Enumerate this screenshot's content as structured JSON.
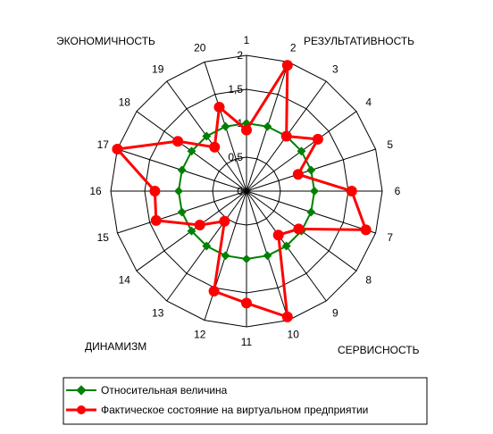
{
  "chart_data": {
    "type": "radar",
    "categories": [
      "1",
      "2",
      "3",
      "4",
      "5",
      "6",
      "7",
      "8",
      "9",
      "10",
      "11",
      "12",
      "13",
      "14",
      "15",
      "16",
      "17",
      "18",
      "19",
      "20"
    ],
    "rlim": [
      0,
      2
    ],
    "r_ticks": [
      "0",
      "0,5",
      "1",
      "1,5",
      "2"
    ],
    "grid": true,
    "legend_position": "bottom",
    "corner_labels": {
      "top_left": "ЭКОНОМИЧНОСТЬ",
      "top_right": "РЕЗУЛЬТАТИВНОСТЬ",
      "bottom_left": "ДИНАМИЗМ",
      "bottom_right": "СЕРВИСНОСТЬ"
    },
    "series": [
      {
        "name": "Относительная величина",
        "color": "#008000",
        "marker": "diamond",
        "values": [
          1.0,
          1.0,
          1.0,
          1.0,
          1.0,
          1.0,
          1.0,
          1.0,
          1.0,
          1.0,
          1.0,
          1.0,
          1.0,
          1.0,
          1.0,
          1.0,
          1.0,
          1.0,
          1.0,
          1.0
        ]
      },
      {
        "name": "Фактическое состояние на виртуальном предприятии",
        "color": "#ff0000",
        "marker": "circle",
        "values": [
          0.9,
          1.95,
          1.0,
          1.3,
          0.8,
          1.55,
          1.85,
          0.95,
          0.8,
          1.95,
          1.65,
          1.55,
          0.55,
          0.85,
          1.4,
          1.35,
          2.0,
          1.25,
          0.8,
          1.3
        ]
      }
    ]
  }
}
